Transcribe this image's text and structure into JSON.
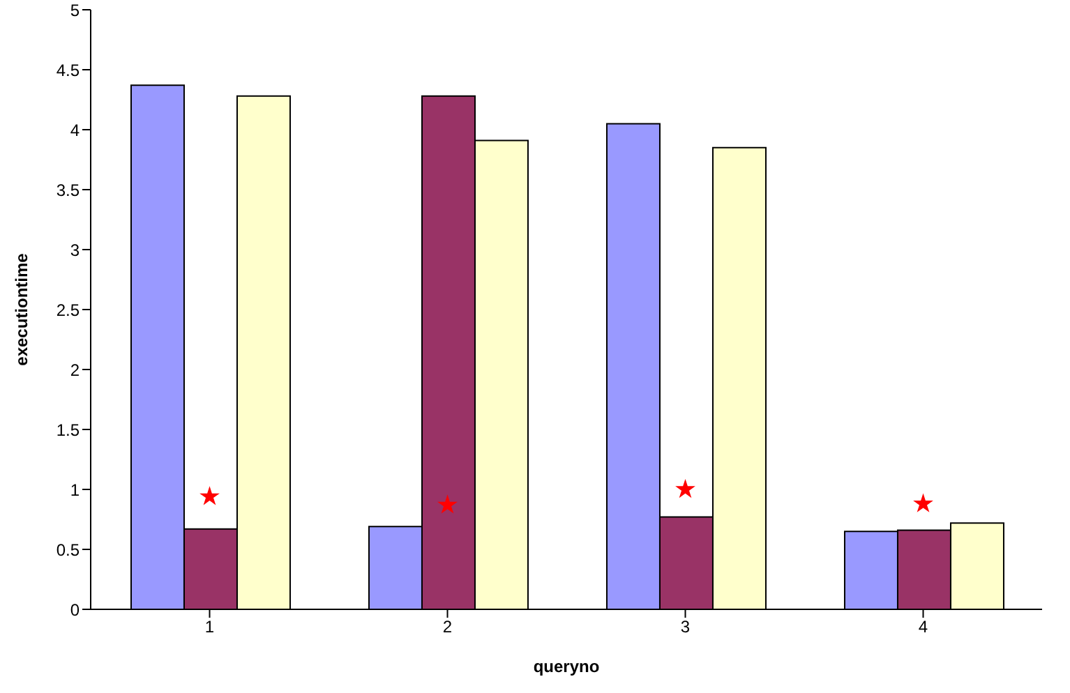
{
  "chart_data": {
    "type": "bar",
    "xlabel": "queryno",
    "ylabel": "executiontime",
    "categories": [
      "1",
      "2",
      "3",
      "4"
    ],
    "series": [
      {
        "color": "#9999ff",
        "values": [
          4.37,
          0.69,
          4.05,
          0.65
        ]
      },
      {
        "color": "#993366",
        "values": [
          0.67,
          4.28,
          0.77,
          0.66
        ]
      },
      {
        "color": "#ffffcc",
        "values": [
          4.28,
          3.91,
          3.85,
          0.72
        ]
      },
      {
        "type": "scatter",
        "marker": "star",
        "color": "#ff0000",
        "x": [
          "1",
          "2",
          "3",
          "4"
        ],
        "values": [
          0.94,
          0.87,
          1.0,
          0.88
        ]
      }
    ],
    "ylim": [
      0,
      5
    ],
    "yticks": [
      0,
      0.5,
      1,
      1.5,
      2,
      2.5,
      3,
      3.5,
      4,
      4.5,
      5
    ],
    "grid": false,
    "legend": false
  }
}
